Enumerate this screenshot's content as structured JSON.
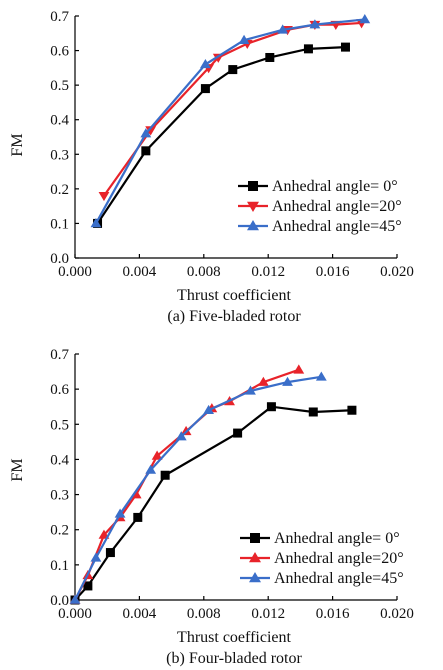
{
  "chart_data": [
    {
      "type": "line",
      "caption": "(a) Five-bladed rotor",
      "xlabel": "Thrust coefficient",
      "ylabel": "FM",
      "xlim": [
        0.0,
        0.02
      ],
      "ylim": [
        0.0,
        0.7
      ],
      "x_ticks": [
        "0.000",
        "0.004",
        "0.008",
        "0.012",
        "0.016",
        "0.020"
      ],
      "y_ticks": [
        "0.0",
        "0.1",
        "0.2",
        "0.3",
        "0.4",
        "0.5",
        "0.6",
        "0.7"
      ],
      "grid": false,
      "legend_position": "lower-right",
      "series": [
        {
          "name": "Anhedral angle= 0°",
          "color": "#000000",
          "marker": "square",
          "x": [
            0.0014,
            0.0044,
            0.0081,
            0.0098,
            0.0121,
            0.0145,
            0.0168
          ],
          "y": [
            0.1,
            0.31,
            0.49,
            0.545,
            0.58,
            0.605,
            0.61
          ]
        },
        {
          "name": "Anhedral angle=20°",
          "color": "#e8232a",
          "marker": "triangle-down",
          "x": [
            0.0018,
            0.0047,
            0.0083,
            0.0089,
            0.0107,
            0.0132,
            0.0149,
            0.0162,
            0.0178
          ],
          "y": [
            0.18,
            0.37,
            0.55,
            0.58,
            0.62,
            0.66,
            0.675,
            0.675,
            0.68
          ]
        },
        {
          "name": "Anhedral angle=45°",
          "color": "#3a6ec9",
          "marker": "triangle-up",
          "x": [
            0.0013,
            0.0044,
            0.0081,
            0.0105,
            0.0129,
            0.0149,
            0.018
          ],
          "y": [
            0.1,
            0.36,
            0.56,
            0.63,
            0.66,
            0.675,
            0.69
          ]
        }
      ]
    },
    {
      "type": "line",
      "caption": "(b) Four-bladed rotor",
      "xlabel": "Thrust coefficient",
      "ylabel": "FM",
      "xlim": [
        0.0,
        0.02
      ],
      "ylim": [
        0.0,
        0.7
      ],
      "x_ticks": [
        "0.000",
        "0.004",
        "0.008",
        "0.012",
        "0.016",
        "0.020"
      ],
      "y_ticks": [
        "0.0",
        "0.1",
        "0.2",
        "0.3",
        "0.4",
        "0.5",
        "0.6",
        "0.7"
      ],
      "grid": false,
      "legend_position": "lower-right",
      "series": [
        {
          "name": "Anhedral angle= 0°",
          "color": "#000000",
          "marker": "square",
          "x": [
            0.0,
            0.0008,
            0.0022,
            0.0039,
            0.0056,
            0.0101,
            0.0122,
            0.0148,
            0.0172
          ],
          "y": [
            0.0,
            0.04,
            0.135,
            0.235,
            0.355,
            0.475,
            0.55,
            0.535,
            0.54
          ]
        },
        {
          "name": "Anhedral angle=20°",
          "color": "#e8232a",
          "marker": "triangle-up",
          "x": [
            0.0,
            0.0008,
            0.0018,
            0.0028,
            0.0038,
            0.0051,
            0.0069,
            0.0085,
            0.0096,
            0.0117,
            0.0139
          ],
          "y": [
            0.0,
            0.07,
            0.185,
            0.235,
            0.3,
            0.41,
            0.48,
            0.545,
            0.565,
            0.62,
            0.655
          ]
        },
        {
          "name": "Anhedral angle=45°",
          "color": "#3a6ec9",
          "marker": "triangle-up",
          "x": [
            0.0,
            0.0013,
            0.0028,
            0.0047,
            0.0066,
            0.0083,
            0.0109,
            0.0132,
            0.0153
          ],
          "y": [
            0.0,
            0.12,
            0.245,
            0.37,
            0.465,
            0.54,
            0.595,
            0.62,
            0.635
          ]
        }
      ]
    }
  ]
}
